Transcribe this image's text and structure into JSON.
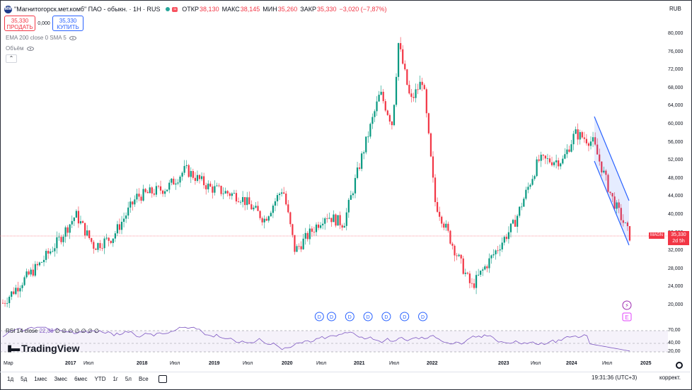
{
  "header": {
    "title": "\"Магнитогорск.мет.комб\" ПАО - обыкн. · 1Н · RUS",
    "flag": "≈",
    "ohlc": [
      {
        "k": "ОТКР",
        "v": "38,130"
      },
      {
        "k": "МАКС",
        "v": "38,145"
      },
      {
        "k": "МИН",
        "v": "35,260"
      },
      {
        "k": "ЗАКР",
        "v": "35,330"
      },
      {
        "k": "",
        "v": "−3,020 (−7,87%)"
      }
    ]
  },
  "trade": {
    "sell_price": "35,330",
    "sell_label": "ПРОДАТЬ",
    "spread": "0,000",
    "buy_price": "35,330",
    "buy_label": "КУПИТЬ"
  },
  "indicators": {
    "ema": "EMA 200 close 0 SMA 5",
    "volume": "Объём"
  },
  "currency": "RUB",
  "price_axis": [
    "80,000",
    "76,000",
    "72,000",
    "68,000",
    "64,000",
    "60,000",
    "56,000",
    "52,000",
    "48,000",
    "44,000",
    "40,000",
    "36,000",
    "32,000",
    "28,000",
    "24,000",
    "20,000"
  ],
  "price_axis_rsi": [
    "70,00",
    "40,00",
    "20,00"
  ],
  "price_tag": {
    "symbol": "MAGN",
    "price": "35,330",
    "countdown": "2d 5h"
  },
  "rsi": {
    "label": "RSI 14 close",
    "value": "22,38",
    "extra": "∅ ∅ ∅ ∅ ∅ ∅ ∅"
  },
  "brand": "TradingView",
  "time_axis": [
    {
      "label": "Мар",
      "year": false
    },
    {
      "label": "2017",
      "year": true
    },
    {
      "label": "Июл",
      "year": false
    },
    {
      "label": "2018",
      "year": true
    },
    {
      "label": "Июл",
      "year": false
    },
    {
      "label": "2019",
      "year": true
    },
    {
      "label": "Июл",
      "year": false
    },
    {
      "label": "2020",
      "year": true
    },
    {
      "label": "Июл",
      "year": false
    },
    {
      "label": "2021",
      "year": true
    },
    {
      "label": "Июл",
      "year": false
    },
    {
      "label": "2022",
      "year": true
    },
    {
      "label": "2023",
      "year": true
    },
    {
      "label": "Июл",
      "year": false
    },
    {
      "label": "2024",
      "year": true
    },
    {
      "label": "Июл",
      "year": false
    },
    {
      "label": "2025",
      "year": true
    }
  ],
  "ranges": [
    "1д",
    "5д",
    "1мес",
    "3мес",
    "6мес",
    "YTD",
    "1г",
    "5л",
    "Все"
  ],
  "clock": "19:31:36 (UTC+3)",
  "correction": "коррект.",
  "markers": {
    "dividend": "D",
    "earnings": "E",
    "flash": "⚡"
  },
  "chart_data": {
    "type": "candlestick",
    "y_range": [
      20,
      80
    ],
    "x_range": [
      "2016-03",
      "2024-10"
    ],
    "close_approx": [
      {
        "d": "2016-03",
        "v": 20.5
      },
      {
        "d": "2016-06",
        "v": 25
      },
      {
        "d": "2016-09",
        "v": 29
      },
      {
        "d": "2016-12",
        "v": 34
      },
      {
        "d": "2017-03",
        "v": 40
      },
      {
        "d": "2017-06",
        "v": 33
      },
      {
        "d": "2017-09",
        "v": 35
      },
      {
        "d": "2018-01",
        "v": 44
      },
      {
        "d": "2018-06",
        "v": 46
      },
      {
        "d": "2018-09",
        "v": 50
      },
      {
        "d": "2019-01",
        "v": 46
      },
      {
        "d": "2019-06",
        "v": 44
      },
      {
        "d": "2019-10",
        "v": 39
      },
      {
        "d": "2020-01",
        "v": 46
      },
      {
        "d": "2020-03",
        "v": 32
      },
      {
        "d": "2020-08",
        "v": 40
      },
      {
        "d": "2020-11",
        "v": 38
      },
      {
        "d": "2021-02",
        "v": 53
      },
      {
        "d": "2021-05",
        "v": 67
      },
      {
        "d": "2021-07",
        "v": 60
      },
      {
        "d": "2021-08",
        "v": 78
      },
      {
        "d": "2021-10",
        "v": 65
      },
      {
        "d": "2021-12",
        "v": 70
      },
      {
        "d": "2022-02",
        "v": 43
      },
      {
        "d": "2022-05",
        "v": 33
      },
      {
        "d": "2022-08",
        "v": 24
      },
      {
        "d": "2022-11",
        "v": 30
      },
      {
        "d": "2023-03",
        "v": 38
      },
      {
        "d": "2023-07",
        "v": 52
      },
      {
        "d": "2023-11",
        "v": 52
      },
      {
        "d": "2024-01",
        "v": 58
      },
      {
        "d": "2024-04",
        "v": 56
      },
      {
        "d": "2024-07",
        "v": 44
      },
      {
        "d": "2024-10",
        "v": 35.33
      }
    ],
    "last_price": 35.33,
    "rsi": {
      "levels": [
        70,
        40,
        20
      ],
      "last": 22.38
    },
    "dividend_dates": [
      "2020-07",
      "2020-09",
      "2020-12",
      "2021-03",
      "2021-06",
      "2021-09",
      "2021-12"
    ]
  }
}
